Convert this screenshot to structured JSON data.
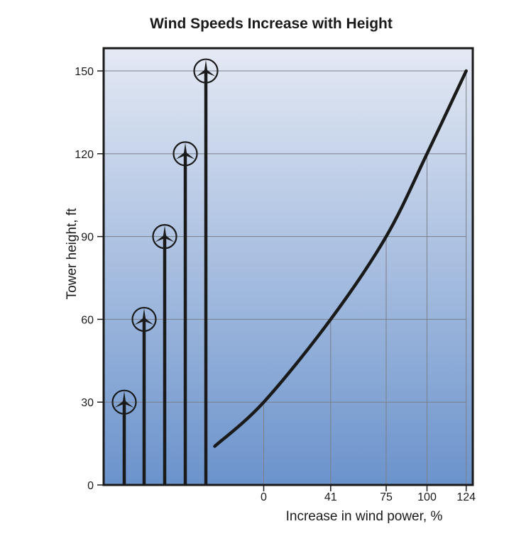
{
  "chart_data": {
    "type": "line",
    "title": "Wind Speeds Increase with Height",
    "xlabel": "Increase in wind power, %",
    "ylabel": "Tower height, ft",
    "ylim": [
      0,
      160
    ],
    "y_ticks": [
      "0",
      "30",
      "60",
      "90",
      "120",
      "150"
    ],
    "x_ticks": [
      "0",
      "41",
      "75",
      "100",
      "124"
    ],
    "x_tick_values": [
      0,
      41,
      75,
      100,
      124
    ],
    "grid": true,
    "series": [
      {
        "points": [
          {
            "x": -30,
            "y": 14
          },
          {
            "x": 0,
            "y": 30
          },
          {
            "x": 41,
            "y": 60
          },
          {
            "x": 75,
            "y": 90
          },
          {
            "x": 100,
            "y": 120
          },
          {
            "x": 124,
            "y": 150
          }
        ]
      }
    ],
    "turbine_heights": [
      30,
      60,
      90,
      120,
      150
    ],
    "colors": {
      "background_top": "#e4e9f4",
      "background_bottom": "#6b93cc",
      "line": "#1a1a1a",
      "grid": "#7a7f88"
    }
  }
}
